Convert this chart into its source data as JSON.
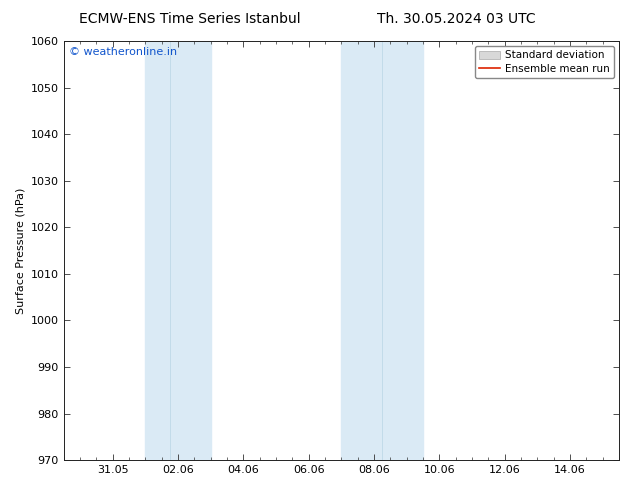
{
  "title_left": "ECMW-ENS Time Series Istanbul",
  "title_right": "Th. 30.05.2024 03 UTC",
  "ylabel": "Surface Pressure (hPa)",
  "ylim": [
    970,
    1060
  ],
  "yticks": [
    970,
    980,
    990,
    1000,
    1010,
    1020,
    1030,
    1040,
    1050,
    1060
  ],
  "xtick_labels": [
    "31.05",
    "02.06",
    "04.06",
    "06.06",
    "08.06",
    "10.06",
    "12.06",
    "14.06"
  ],
  "xtick_positions": [
    1,
    3,
    5,
    7,
    9,
    11,
    13,
    15
  ],
  "xlim": [
    -0.5,
    16.5
  ],
  "shaded_bands": [
    {
      "x_start": 2.0,
      "x_end": 2.5,
      "color": "#daeaf5"
    },
    {
      "x_start": 2.5,
      "x_end": 4.0,
      "color": "#daeaf5"
    },
    {
      "x_start": 8.0,
      "x_end": 9.0,
      "color": "#daeaf5"
    },
    {
      "x_start": 9.0,
      "x_end": 10.5,
      "color": "#daeaf5"
    }
  ],
  "watermark_text": "© weatheronline.in",
  "watermark_color": "#1155cc",
  "background_color": "#ffffff",
  "plot_bg_color": "#ffffff",
  "legend_std_label": "Standard deviation",
  "legend_mean_label": "Ensemble mean run",
  "legend_std_facecolor": "#d8d8d8",
  "legend_std_edgecolor": "#aaaaaa",
  "legend_mean_color": "#dd2200",
  "title_fontsize": 10,
  "axis_label_fontsize": 8,
  "tick_fontsize": 8,
  "watermark_fontsize": 8,
  "legend_fontsize": 7.5
}
